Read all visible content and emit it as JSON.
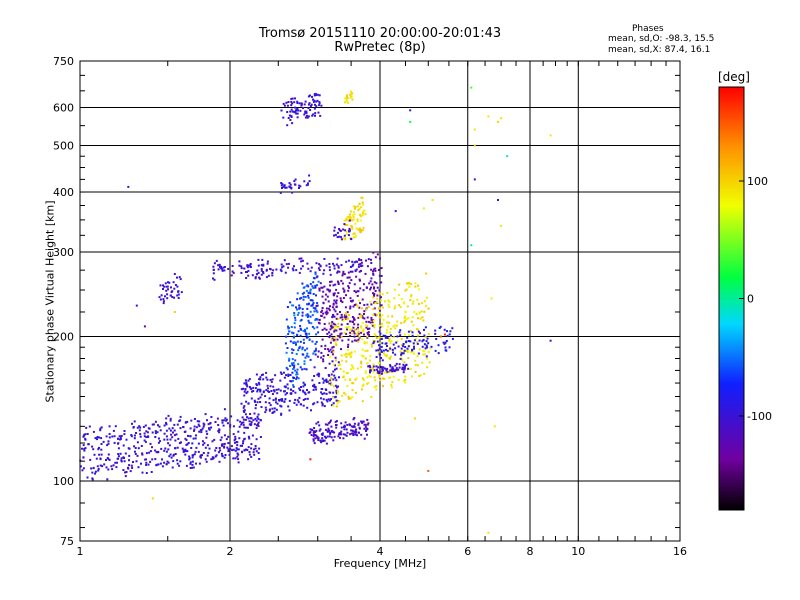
{
  "chart_data": {
    "type": "scatter",
    "title": "Tromsø 20151110 20:00:00-20:01:43",
    "subtitle": "RwPretec (8p)",
    "xlabel": "Frequency [MHz]",
    "ylabel": "Stationary phase Virtual Height [km]",
    "x_scale": "log",
    "y_scale": "log",
    "xlim": [
      1,
      16
    ],
    "ylim": [
      75,
      750
    ],
    "x_ticks": [
      1,
      2,
      4,
      6,
      8,
      10,
      16
    ],
    "y_ticks": [
      75,
      100,
      200,
      300,
      400,
      500,
      600,
      750
    ],
    "grid": true,
    "stats": {
      "heading": "Phases",
      "line_o": "mean, sd,O: -98.3, 15.5",
      "line_x": "mean, sd,X: 87.4, 16.1"
    },
    "colorbar": {
      "label": "[deg]",
      "ticks": [
        100,
        0,
        -100
      ],
      "range": [
        -180,
        180
      ],
      "colormap": "rainbow"
    },
    "clusters": [
      {
        "name": "o-trace-low",
        "x0": 1.0,
        "x1": 2.3,
        "y0": 102,
        "y1": 140,
        "phase": -100,
        "n": 520,
        "spread": 0.06
      },
      {
        "name": "o-trace-mid",
        "x0": 2.1,
        "x1": 3.3,
        "y0": 135,
        "y1": 175,
        "phase": -98,
        "n": 260,
        "spread": 0.05
      },
      {
        "name": "o-trace-rise",
        "x0": 2.6,
        "x1": 3.0,
        "y0": 155,
        "y1": 275,
        "phase": -60,
        "n": 200,
        "spread": 0.03
      },
      {
        "name": "x-bottom",
        "x0": 2.9,
        "x1": 3.8,
        "y0": 120,
        "y1": 135,
        "phase": -110,
        "n": 140,
        "spread": 0.03
      },
      {
        "name": "o-shelf-275",
        "x0": 1.85,
        "x1": 3.7,
        "y0": 265,
        "y1": 290,
        "phase": -105,
        "n": 150,
        "spread": 0.04
      },
      {
        "name": "o-cusp",
        "x0": 3.0,
        "x1": 4.0,
        "y0": 175,
        "y1": 300,
        "phase": -125,
        "n": 320,
        "spread": 0.05
      },
      {
        "name": "x-trace",
        "x0": 3.2,
        "x1": 5.0,
        "y0": 140,
        "y1": 270,
        "phase": 92,
        "n": 380,
        "spread": 0.06
      },
      {
        "name": "o-high-shelf",
        "x0": 3.9,
        "x1": 5.6,
        "y0": 180,
        "y1": 210,
        "phase": -90,
        "n": 110,
        "spread": 0.04
      },
      {
        "name": "o-tail-low",
        "x0": 3.8,
        "x1": 4.6,
        "y0": 168,
        "y1": 175,
        "phase": -105,
        "n": 60,
        "spread": 0.02
      },
      {
        "name": "e-spread",
        "x0": 1.45,
        "x1": 1.6,
        "y0": 235,
        "y1": 265,
        "phase": -102,
        "n": 40,
        "spread": 0.03
      },
      {
        "name": "f2-high",
        "x0": 2.55,
        "x1": 3.05,
        "y0": 550,
        "y1": 650,
        "phase": -100,
        "n": 90,
        "spread": 0.03
      },
      {
        "name": "f2-high-x",
        "x0": 3.4,
        "x1": 3.55,
        "y0": 610,
        "y1": 650,
        "phase": 92,
        "n": 18,
        "spread": 0.02
      },
      {
        "name": "x-high",
        "x0": 3.4,
        "x1": 3.75,
        "y0": 310,
        "y1": 390,
        "phase": 95,
        "n": 70,
        "spread": 0.03
      },
      {
        "name": "o-high-patch",
        "x0": 2.5,
        "x1": 2.9,
        "y0": 400,
        "y1": 430,
        "phase": -100,
        "n": 30,
        "spread": 0.03
      },
      {
        "name": "o-cusp-high",
        "x0": 3.2,
        "x1": 3.5,
        "y0": 310,
        "y1": 350,
        "phase": -105,
        "n": 25,
        "spread": 0.02
      }
    ],
    "scattered_points": [
      {
        "x": 1.25,
        "y": 410,
        "phase": -100
      },
      {
        "x": 1.35,
        "y": 210,
        "phase": -130
      },
      {
        "x": 1.3,
        "y": 232,
        "phase": -100
      },
      {
        "x": 1.4,
        "y": 92,
        "phase": 100
      },
      {
        "x": 1.55,
        "y": 225,
        "phase": 100
      },
      {
        "x": 4.6,
        "y": 592,
        "phase": -100
      },
      {
        "x": 4.6,
        "y": 560,
        "phase": 20
      },
      {
        "x": 6.1,
        "y": 660,
        "phase": 30
      },
      {
        "x": 6.2,
        "y": 540,
        "phase": 90
      },
      {
        "x": 6.2,
        "y": 500,
        "phase": 100
      },
      {
        "x": 6.6,
        "y": 575,
        "phase": 90
      },
      {
        "x": 6.9,
        "y": 560,
        "phase": 100
      },
      {
        "x": 7.0,
        "y": 570,
        "phase": 90
      },
      {
        "x": 8.8,
        "y": 525,
        "phase": 90
      },
      {
        "x": 7.2,
        "y": 475,
        "phase": -10
      },
      {
        "x": 6.2,
        "y": 425,
        "phase": -100
      },
      {
        "x": 6.9,
        "y": 385,
        "phase": -100
      },
      {
        "x": 7.0,
        "y": 340,
        "phase": 90
      },
      {
        "x": 6.1,
        "y": 310,
        "phase": -10
      },
      {
        "x": 6.7,
        "y": 240,
        "phase": 70
      },
      {
        "x": 4.3,
        "y": 365,
        "phase": -100
      },
      {
        "x": 5.1,
        "y": 385,
        "phase": 90
      },
      {
        "x": 4.9,
        "y": 370,
        "phase": 70
      },
      {
        "x": 8.8,
        "y": 196,
        "phase": -100
      },
      {
        "x": 5.0,
        "y": 105,
        "phase": 150
      },
      {
        "x": 4.7,
        "y": 135,
        "phase": 100
      },
      {
        "x": 6.6,
        "y": 78,
        "phase": 90
      },
      {
        "x": 6.8,
        "y": 130,
        "phase": 90
      },
      {
        "x": 5.3,
        "y": 200,
        "phase": 150
      },
      {
        "x": 5.4,
        "y": 202,
        "phase": 170
      },
      {
        "x": 1.55,
        "y": 270,
        "phase": -100
      },
      {
        "x": 2.9,
        "y": 111,
        "phase": 170
      }
    ]
  }
}
